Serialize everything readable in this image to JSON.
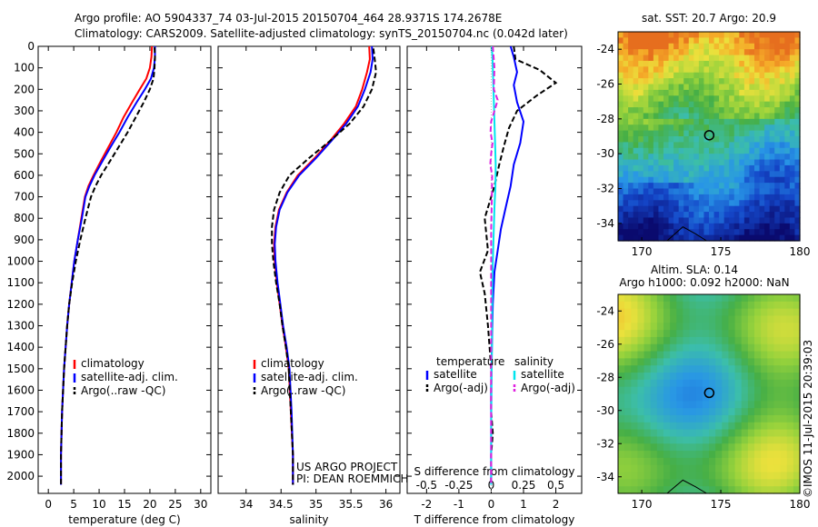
{
  "header": {
    "line1": "Argo profile: AO 5904337_74 03-Jul-2015 20150704_464 28.9371S 174.2678E",
    "line2": "Climatology: CARS2009. Satellite-adjusted climatology: synTS_20150704.nc (0.042d later)"
  },
  "footer": {
    "project_line1": "US ARGO PROJECT",
    "project_line2": "PI: DEAN ROEMMICH",
    "credit": "©IMOS 11-Jul-2015 20:39:03"
  },
  "colors": {
    "climatology": "#ff0000",
    "satellite": "#0000ff",
    "argo": "#000000",
    "sal_satellite": "#00e5ee",
    "sal_argo": "#e020e0"
  },
  "chart_data": [
    {
      "type": "line",
      "xlabel": "temperature (deg C)",
      "ylabel": "",
      "xlim": [
        -2,
        32
      ],
      "ylim": [
        2080,
        0
      ],
      "xticks": [
        0,
        5,
        10,
        15,
        20,
        25,
        30
      ],
      "yticks": [
        0,
        100,
        200,
        300,
        400,
        500,
        600,
        700,
        800,
        900,
        1000,
        1100,
        1200,
        1300,
        1400,
        1500,
        1600,
        1700,
        1800,
        1900,
        2000
      ],
      "legend": [
        "climatology",
        "satellite-adj. clim.",
        "Argo(..raw -QC)"
      ],
      "legend_position": "lower-right",
      "series": [
        {
          "name": "climatology",
          "color": "#ff0000",
          "dash": "",
          "x": [
            20.4,
            20.3,
            20.0,
            19.3,
            18.0,
            16.5,
            14.8,
            13.4,
            11.8,
            10.2,
            8.9,
            7.9,
            7.2,
            6.5,
            5.8,
            5.1,
            4.6,
            4.1,
            3.7,
            3.4,
            3.1,
            2.9,
            2.7,
            2.6,
            2.5,
            2.5
          ],
          "y": [
            0,
            50,
            100,
            150,
            200,
            260,
            330,
            400,
            470,
            540,
            600,
            650,
            700,
            800,
            900,
            1000,
            1100,
            1200,
            1300,
            1400,
            1500,
            1600,
            1700,
            1800,
            1900,
            2040
          ]
        },
        {
          "name": "satellite-adj. clim.",
          "color": "#0000ff",
          "dash": "",
          "x": [
            21.0,
            21.0,
            20.8,
            20.2,
            19.0,
            17.4,
            15.6,
            14.0,
            12.2,
            10.5,
            9.1,
            8.1,
            7.3,
            6.6,
            5.8,
            5.1,
            4.6,
            4.1,
            3.7,
            3.4,
            3.1,
            2.9,
            2.7,
            2.6,
            2.5,
            2.5
          ],
          "y": [
            0,
            50,
            100,
            150,
            200,
            260,
            330,
            400,
            470,
            540,
            600,
            650,
            700,
            800,
            900,
            1000,
            1100,
            1200,
            1300,
            1400,
            1500,
            1600,
            1700,
            1800,
            1900,
            2040
          ]
        },
        {
          "name": "Argo(..raw -QC)",
          "color": "#000000",
          "dash": "6,3",
          "x": [
            20.9,
            21.0,
            20.9,
            20.7,
            20.0,
            18.8,
            17.2,
            15.6,
            13.8,
            12.0,
            10.4,
            9.3,
            8.4,
            7.3,
            6.3,
            5.4,
            4.7,
            4.1,
            3.7,
            3.4,
            3.1,
            2.9,
            2.7,
            2.6,
            2.5,
            2.5
          ],
          "y": [
            5,
            50,
            100,
            150,
            200,
            260,
            330,
            400,
            470,
            540,
            600,
            650,
            700,
            800,
            900,
            1000,
            1100,
            1200,
            1300,
            1400,
            1500,
            1600,
            1700,
            1800,
            1900,
            2040
          ]
        }
      ]
    },
    {
      "type": "line",
      "xlabel": "salinity",
      "ylabel": "",
      "xlim": [
        33.6,
        36.2
      ],
      "ylim": [
        2080,
        0
      ],
      "xticks": [
        34,
        34.5,
        35,
        35.5,
        36
      ],
      "legend": [
        "climatology",
        "satellite-adj. clim.",
        "Argo(..raw -QC)"
      ],
      "legend_position": "lower-right",
      "series": [
        {
          "name": "climatology",
          "color": "#ff0000",
          "dash": "",
          "x": [
            35.76,
            35.77,
            35.73,
            35.66,
            35.57,
            35.4,
            35.2,
            34.98,
            34.74,
            34.58,
            34.47,
            34.42,
            34.4,
            34.41,
            34.44,
            34.48,
            34.52,
            34.57,
            34.61,
            34.64,
            34.67,
            34.67
          ],
          "y": [
            0,
            60,
            120,
            200,
            280,
            360,
            440,
            520,
            600,
            680,
            760,
            840,
            920,
            1000,
            1100,
            1200,
            1300,
            1400,
            1500,
            1700,
            1900,
            2040
          ]
        },
        {
          "name": "satellite-adj. clim.",
          "color": "#0000ff",
          "dash": "",
          "x": [
            35.8,
            35.81,
            35.78,
            35.7,
            35.6,
            35.43,
            35.22,
            35.0,
            34.76,
            34.59,
            34.48,
            34.43,
            34.41,
            34.42,
            34.45,
            34.49,
            34.53,
            34.58,
            34.62,
            34.65,
            34.67,
            34.67
          ],
          "y": [
            0,
            60,
            120,
            200,
            280,
            360,
            440,
            520,
            600,
            680,
            760,
            840,
            920,
            1000,
            1100,
            1200,
            1300,
            1400,
            1500,
            1700,
            1900,
            2040
          ]
        },
        {
          "name": "Argo(..raw -QC)",
          "color": "#000000",
          "dash": "6,3",
          "x": [
            35.82,
            35.84,
            35.86,
            35.8,
            35.68,
            35.48,
            35.2,
            34.9,
            34.62,
            34.48,
            34.4,
            34.37,
            34.37,
            34.39,
            34.43,
            34.48,
            34.52,
            34.57,
            34.61,
            34.64,
            34.67,
            34.67
          ],
          "y": [
            10,
            60,
            120,
            200,
            280,
            360,
            440,
            520,
            600,
            680,
            760,
            840,
            920,
            1000,
            1100,
            1200,
            1300,
            1400,
            1500,
            1700,
            1900,
            2040
          ]
        }
      ]
    },
    {
      "type": "line",
      "xlabel": "T difference from climatology",
      "xlabel_top": "S difference from climatology",
      "ylabel": "",
      "xlim": [
        -2.6,
        2.8
      ],
      "ylim": [
        2080,
        0
      ],
      "xticks": [
        -2,
        -1,
        0,
        1,
        2
      ],
      "xtick_labels": [
        "-2",
        "-1",
        "0",
        "1",
        "2"
      ],
      "xticks_s": [
        -0.5,
        -0.25,
        0,
        0.25,
        0.5
      ],
      "legend_title_t": "temperature",
      "legend_title_s": "salinity",
      "legend": [
        "satellite",
        "Argo(-adj)",
        "satellite",
        "Argo(-adj)"
      ],
      "legend_position": "lower-center",
      "series": [
        {
          "name": "satellite",
          "group": "temperature",
          "color": "#0000ff",
          "dash": "",
          "x": [
            0.6,
            0.7,
            0.8,
            0.7,
            0.8,
            1.0,
            0.9,
            0.7,
            0.6,
            0.45,
            0.3,
            0.2,
            0.1,
            0.05,
            0.02,
            0.0,
            0.0,
            0.0,
            0.0
          ],
          "y": [
            0,
            50,
            120,
            180,
            260,
            350,
            450,
            550,
            650,
            750,
            850,
            950,
            1050,
            1200,
            1400,
            1600,
            1800,
            1950,
            2040
          ]
        },
        {
          "name": "Argo(-adj)",
          "group": "temperature",
          "color": "#000000",
          "dash": "6,3",
          "x": [
            0.7,
            0.75,
            1.5,
            2.0,
            1.4,
            0.8,
            0.55,
            0.4,
            0.25,
            0.1,
            -0.2,
            -0.1,
            -0.35,
            -0.2,
            -0.1,
            0.0,
            0.0,
            0.05,
            0.0,
            0.0,
            0.0
          ],
          "y": [
            0,
            60,
            110,
            170,
            230,
            300,
            380,
            460,
            550,
            650,
            800,
            950,
            1050,
            1150,
            1300,
            1500,
            1700,
            1800,
            1900,
            2000,
            2040
          ]
        },
        {
          "name": "satellite",
          "group": "salinity",
          "color": "#00e5ee",
          "dash": "",
          "x": [
            0.02,
            0.04,
            0.06,
            0.08,
            0.1,
            0.12,
            0.14,
            0.13,
            0.1,
            0.08,
            0.06,
            0.04,
            0.03,
            0.02,
            0.01,
            0.0,
            0.0
          ],
          "y": [
            0,
            60,
            150,
            250,
            350,
            450,
            550,
            650,
            750,
            850,
            950,
            1050,
            1200,
            1400,
            1600,
            1800,
            2040
          ]
        },
        {
          "name": "Argo(-adj)",
          "group": "salinity",
          "color": "#e020e0",
          "dash": "6,3",
          "x": [
            0.05,
            0.1,
            0.08,
            0.2,
            0.1,
            0.0,
            -0.02,
            0.04,
            0.0,
            -0.03,
            0.03,
            0.02,
            0.0,
            0.0,
            0.0,
            0.0
          ],
          "y": [
            0,
            100,
            200,
            250,
            300,
            350,
            400,
            450,
            500,
            550,
            600,
            700,
            850,
            1100,
            1400,
            2040
          ]
        }
      ]
    },
    {
      "type": "heatmap",
      "title": "sat. SST: 20.7 Argo: 20.9",
      "xlim": [
        168.5,
        180
      ],
      "ylim": [
        -35,
        -23
      ],
      "xticks": [
        170,
        175,
        180
      ],
      "yticks": [
        -34,
        -32,
        -30,
        -28,
        -26,
        -24
      ],
      "marker": {
        "lon": 174.27,
        "lat": -28.94
      }
    },
    {
      "type": "heatmap",
      "title_line1": "Altim. SLA: 0.14",
      "title_line2": "Argo h1000: 0.092 h2000: NaN",
      "xlim": [
        168.5,
        180
      ],
      "ylim": [
        -35,
        -23
      ],
      "xticks": [
        170,
        175,
        180
      ],
      "yticks": [
        -34,
        -32,
        -30,
        -28,
        -26,
        -24
      ],
      "marker": {
        "lon": 174.27,
        "lat": -28.94
      }
    }
  ]
}
